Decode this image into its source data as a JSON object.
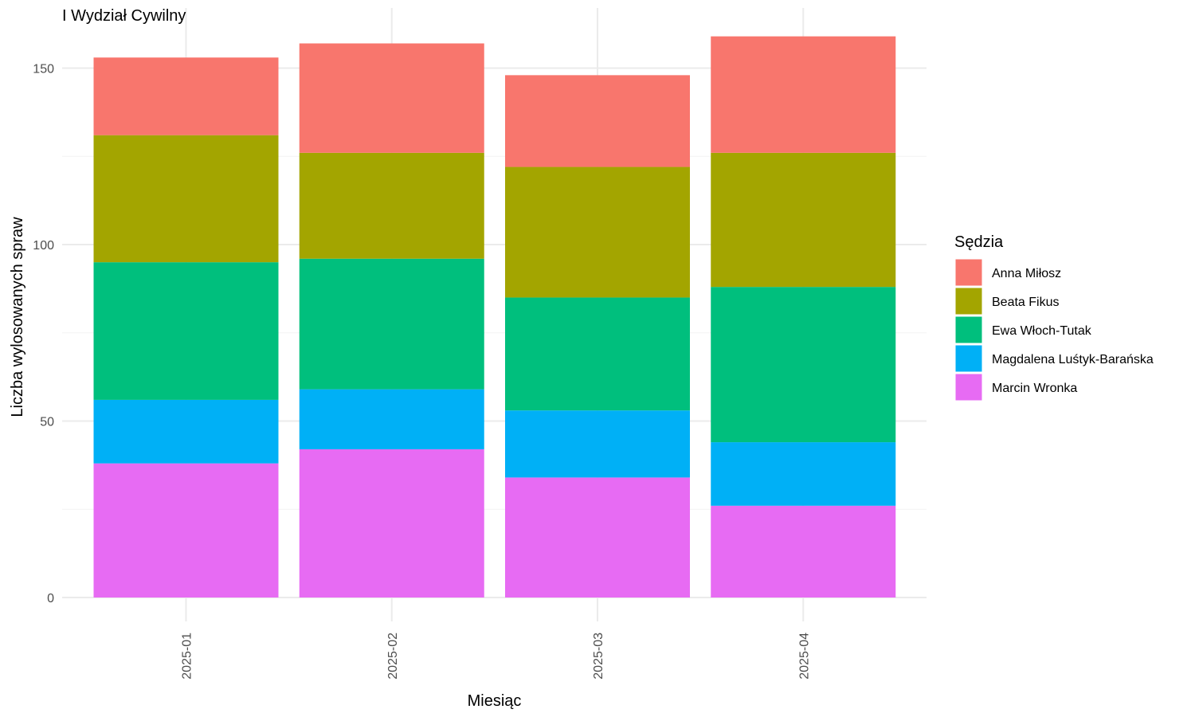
{
  "chart_data": {
    "type": "bar",
    "stacked": true,
    "title": "I Wydział Cywilny",
    "xlabel": "Miesiąc",
    "ylabel": "Liczba wylosowanych spraw",
    "ylim": [
      0,
      160
    ],
    "yticks": [
      0,
      50,
      100,
      150
    ],
    "grid": true,
    "legend": {
      "title": "Sędzia",
      "position": "right"
    },
    "categories": [
      "2025-01",
      "2025-02",
      "2025-03",
      "2025-04"
    ],
    "series": [
      {
        "name": "Anna Miłosz",
        "color": "#F8766D",
        "values": [
          22,
          31,
          26,
          33
        ]
      },
      {
        "name": "Beata Fikus",
        "color": "#A3A500",
        "values": [
          36,
          30,
          37,
          38
        ]
      },
      {
        "name": "Ewa Włoch-Tutak",
        "color": "#00BF7D",
        "values": [
          39,
          37,
          32,
          44
        ]
      },
      {
        "name": "Magdalena Luśtyk-Barańska",
        "color": "#00B0F6",
        "values": [
          18,
          17,
          19,
          18
        ]
      },
      {
        "name": "Marcin Wronka",
        "color": "#E76BF3",
        "values": [
          38,
          42,
          34,
          26
        ]
      }
    ]
  }
}
